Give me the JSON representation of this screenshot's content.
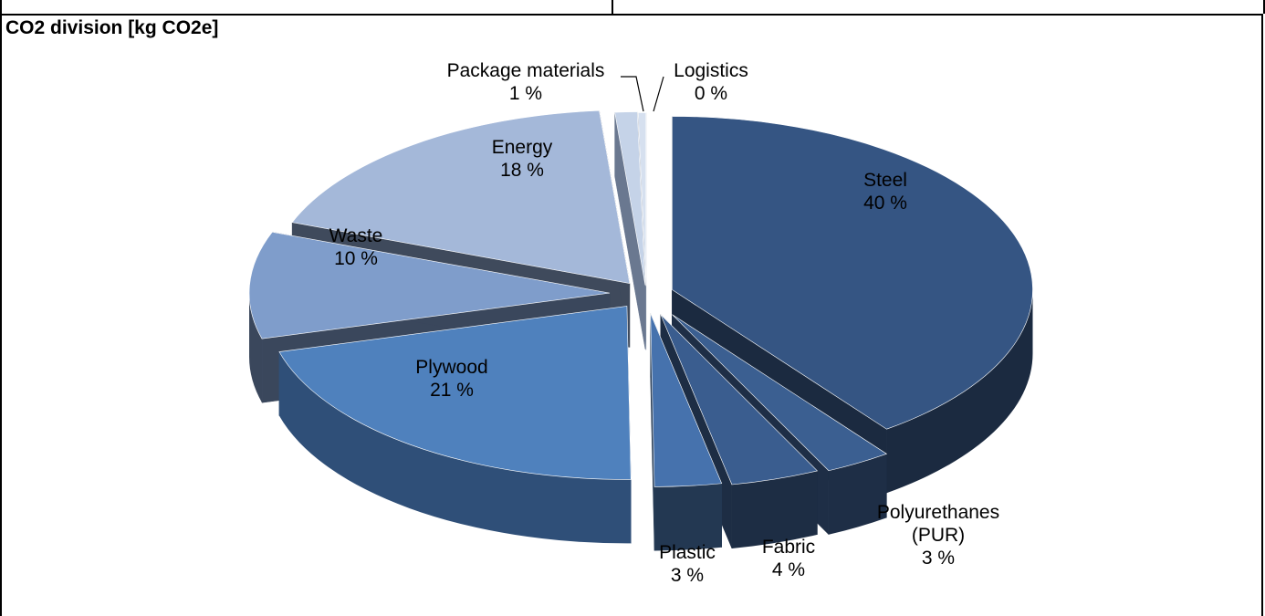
{
  "chart_data": {
    "type": "pie",
    "style": "3d-exploded",
    "title": "CO2 division [kg CO2e]",
    "unit": "%",
    "slices": [
      {
        "name": "Steel",
        "value": 40,
        "color": "#355583",
        "side": "#1b2a40"
      },
      {
        "name": "Polyurethanes (PUR)",
        "value": 3,
        "color": "#3b5f91",
        "side": "#1e2e46"
      },
      {
        "name": "Fabric",
        "value": 4,
        "color": "#3a5d8f",
        "side": "#1d2d44"
      },
      {
        "name": "Plastic",
        "value": 3,
        "color": "#4672ad",
        "side": "#233852"
      },
      {
        "name": "Plywood",
        "value": 21,
        "color": "#4f81bd",
        "side": "#2f4f78"
      },
      {
        "name": "Waste",
        "value": 10,
        "color": "#7f9dcb",
        "side": "#3a475c"
      },
      {
        "name": "Energy",
        "value": 18,
        "color": "#a4b8d9",
        "side": "#3f4a5c"
      },
      {
        "name": "Package materials",
        "value": 1,
        "color": "#c5d3e8",
        "side": "#6a7890"
      },
      {
        "name": "Logistics",
        "value": 0,
        "color": "#d6e0ef",
        "side": "#7c8aa0"
      }
    ],
    "labels": [
      {
        "name_lines": [
          "Steel"
        ],
        "pct": "40 %"
      },
      {
        "name_lines": [
          "Polyurethanes",
          "(PUR)"
        ],
        "pct": "3 %"
      },
      {
        "name_lines": [
          "Fabric"
        ],
        "pct": "4 %"
      },
      {
        "name_lines": [
          "Plastic"
        ],
        "pct": "3 %"
      },
      {
        "name_lines": [
          "Plywood"
        ],
        "pct": "21 %"
      },
      {
        "name_lines": [
          "Waste"
        ],
        "pct": "10 %"
      },
      {
        "name_lines": [
          "Energy"
        ],
        "pct": "18 %"
      },
      {
        "name_lines": [
          "Package materials"
        ],
        "pct": "1 %"
      },
      {
        "name_lines": [
          "Logistics"
        ],
        "pct": "0 %"
      }
    ],
    "legend": "none",
    "grid": false
  }
}
